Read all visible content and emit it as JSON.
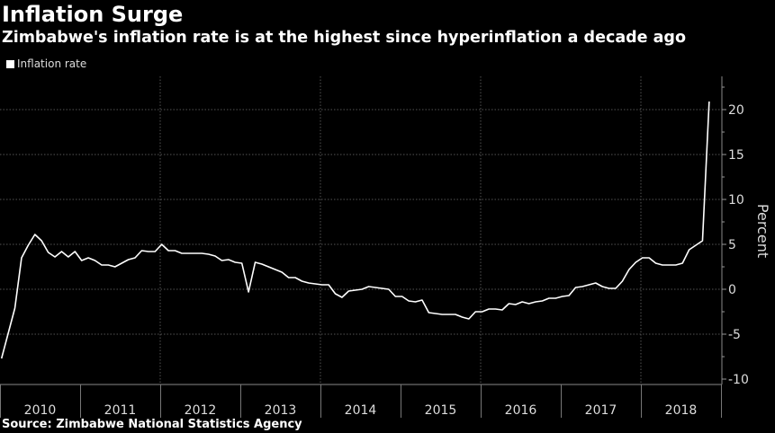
{
  "title": "Inflation Surge",
  "subtitle": "Zimbabwe's inflation rate is at the highest since hyperinflation a decade ago",
  "source": "Source: Zimbabwe National Statistics Agency",
  "chart_data": {
    "type": "line",
    "title": "Inflation Surge",
    "subtitle": "Zimbabwe's inflation rate is at the highest since hyperinflation a decade ago",
    "xlabel": "",
    "ylabel": "Percent",
    "y_axis_side": "right",
    "ylim": [
      -10,
      22
    ],
    "yticks": [
      20,
      15,
      10,
      5,
      0,
      -5,
      -10
    ],
    "xtick_labels": [
      "2010",
      "2011",
      "2012",
      "2013",
      "2014",
      "2015",
      "2016",
      "2017",
      "2018"
    ],
    "grid": true,
    "legend": "top-left",
    "colors": {
      "background": "#000000",
      "line": "#ffffff",
      "grid": "#555555"
    },
    "series": [
      {
        "name": "Inflation rate",
        "start_month": "2009-12",
        "frequency": "monthly",
        "values": [
          -7.7,
          -4.9,
          -2.1,
          3.5,
          4.9,
          6.1,
          5.4,
          4.1,
          3.6,
          4.2,
          3.6,
          4.2,
          3.2,
          3.5,
          3.2,
          2.7,
          2.7,
          2.5,
          2.9,
          3.3,
          3.5,
          4.3,
          4.2,
          4.2,
          5.0,
          4.3,
          4.3,
          4.0,
          4.0,
          4.0,
          4.0,
          3.9,
          3.7,
          3.2,
          3.3,
          3.0,
          2.9,
          -0.3,
          3.0,
          2.8,
          2.5,
          2.2,
          1.9,
          1.3,
          1.3,
          0.9,
          0.7,
          0.6,
          0.5,
          0.5,
          -0.5,
          -0.9,
          -0.2,
          -0.1,
          0.0,
          0.3,
          0.2,
          0.1,
          0.0,
          -0.8,
          -0.8,
          -1.3,
          -1.4,
          -1.2,
          -2.6,
          -2.7,
          -2.8,
          -2.8,
          -2.8,
          -3.1,
          -3.3,
          -2.5,
          -2.5,
          -2.2,
          -2.2,
          -2.3,
          -1.6,
          -1.7,
          -1.4,
          -1.6,
          -1.4,
          -1.3,
          -1.0,
          -1.0,
          -0.8,
          -0.7,
          0.2,
          0.3,
          0.5,
          0.7,
          0.3,
          0.1,
          0.1,
          0.9,
          2.2,
          3.0,
          3.5,
          3.5,
          2.9,
          2.7,
          2.7,
          2.7,
          2.9,
          4.4,
          4.9,
          5.4,
          20.9
        ]
      }
    ]
  }
}
